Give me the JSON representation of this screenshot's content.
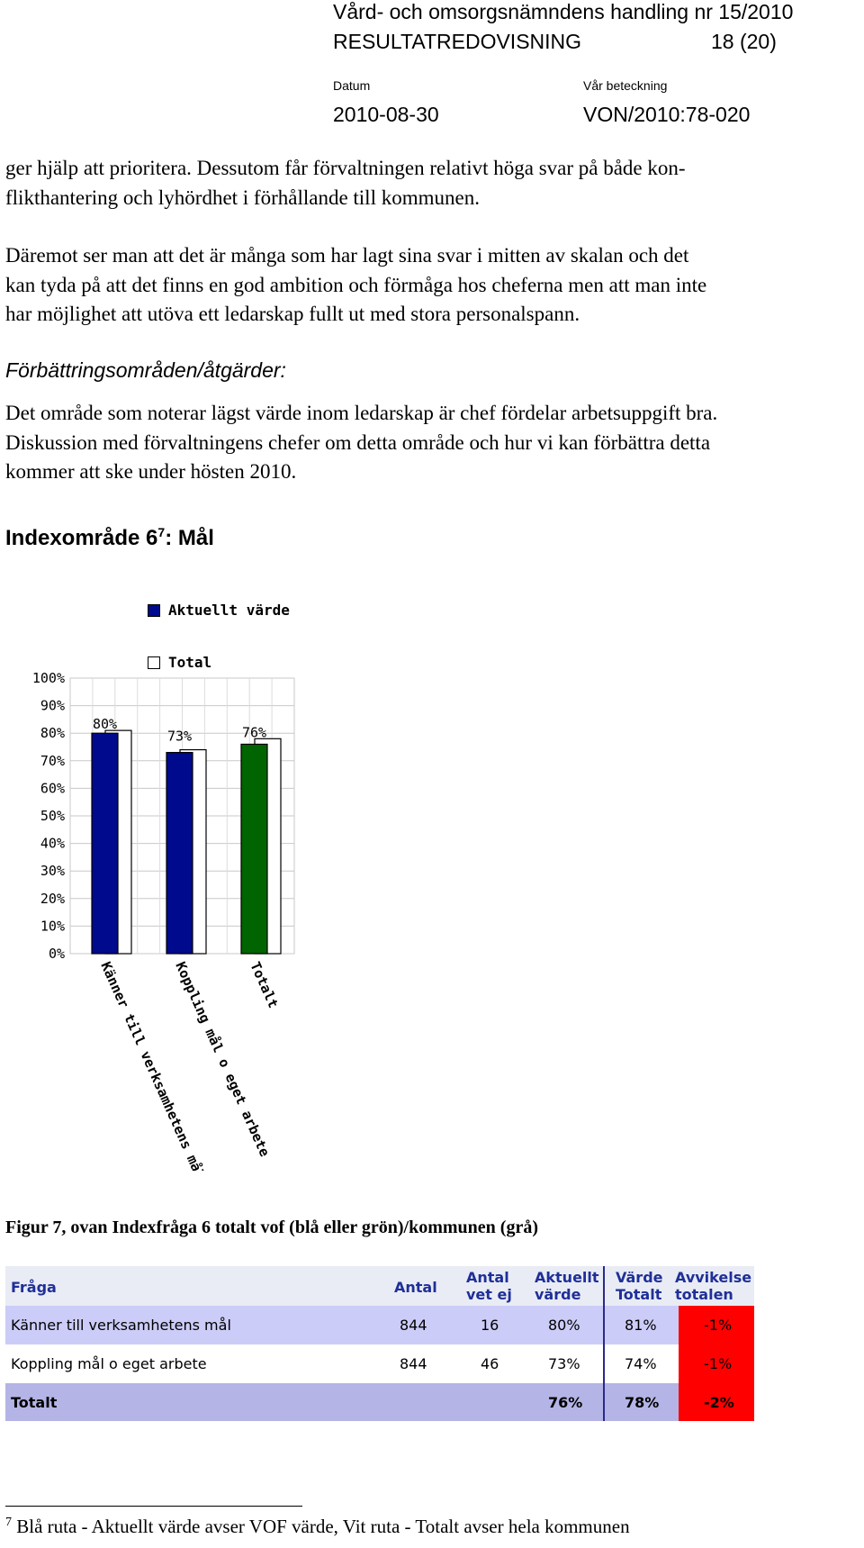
{
  "header": {
    "title": "Vård- och omsorgsnämndens handling nr 15/2010",
    "report": "RESULTATREDOVISNING",
    "page": "18 (20)",
    "date_label": "Datum",
    "ref_label": "Vår beteckning",
    "date": "2010-08-30",
    "ref": "VON/2010:78-020"
  },
  "body": {
    "p1": [
      "ger hjälp att prioritera. Dessutom får förvaltningen relativt höga svar på både kon-",
      "flikthantering och lyhördhet i förhållande till kommunen."
    ],
    "p2": [
      "Däremot ser man att det är många som har lagt sina svar i mitten av skalan och det",
      "kan tyda på att det finns en god ambition och förmåga hos cheferna men att man inte",
      "har möjlighet att utöva ett ledarskap fullt ut med stora personalspann."
    ],
    "heading_improvements": "Förbättringsområden/åtgärder:",
    "p3": [
      "Det område som noterar lägst värde inom ledarskap är chef fördelar arbetsuppgift bra.",
      "Diskussion med förvaltningens chefer om detta område och hur vi kan förbättra detta",
      "kommer att ske under hösten 2010."
    ],
    "section_title": "Indexområde 6",
    "section_sup": "7",
    "section_suffix": ": Mål"
  },
  "chart_data": {
    "type": "bar",
    "categories": [
      "Känner till verksamhetens mål",
      "Koppling mål o eget arbete",
      "Totalt"
    ],
    "series": [
      {
        "name": "Aktuellt värde",
        "values": [
          80,
          73,
          76
        ],
        "colors": [
          "#000a8c",
          "#000a8c",
          "#006400"
        ]
      },
      {
        "name": "Total",
        "values": [
          81,
          74,
          78
        ],
        "colors": [
          "#ffffff",
          "#ffffff",
          "#ffffff"
        ]
      }
    ],
    "data_labels": [
      "80%",
      "73%",
      "76%"
    ],
    "ylim": [
      0,
      100
    ],
    "yticks": [
      "0%",
      "10%",
      "20%",
      "30%",
      "40%",
      "50%",
      "60%",
      "70%",
      "80%",
      "90%",
      "100%"
    ],
    "grid": true,
    "legend": "top"
  },
  "caption": "Figur 7, ovan Indexfråga 6 totalt vof (blå eller grön)/kommunen (grå)",
  "table": {
    "headers": {
      "fraga": "Fråga",
      "antal": "Antal",
      "antal_vet_ej": [
        "Antal",
        "vet ej"
      ],
      "aktuellt": [
        "Aktuellt",
        "värde"
      ],
      "varde_totalt": [
        "Värde",
        "Totalt"
      ],
      "avvikelse": [
        "Avvikelse",
        "totalen"
      ]
    },
    "rows": [
      {
        "fraga": "Känner till verksamhetens mål",
        "antal": "844",
        "vet_ej": "16",
        "aktuellt": "80%",
        "totalt": "81%",
        "avvikelse": "-1%"
      },
      {
        "fraga": "Koppling mål o eget arbete",
        "antal": "844",
        "vet_ej": "46",
        "aktuellt": "73%",
        "totalt": "74%",
        "avvikelse": "-1%"
      },
      {
        "fraga": "Totalt",
        "antal": "",
        "vet_ej": "",
        "aktuellt": "76%",
        "totalt": "78%",
        "avvikelse": "-2%"
      }
    ],
    "colors": {
      "header_bg": "#e9ecf4",
      "header_text": "#1f2f98",
      "row_bg": "#ccccf8",
      "total_bg": "#b4b4e6",
      "deviation_bg": "#ff0000",
      "divider": "#2a2a8a"
    }
  },
  "footnote": {
    "number": "7",
    "text": "Blå ruta - Aktuellt värde avser VOF värde, Vit ruta - Totalt avser hela kommunen"
  }
}
